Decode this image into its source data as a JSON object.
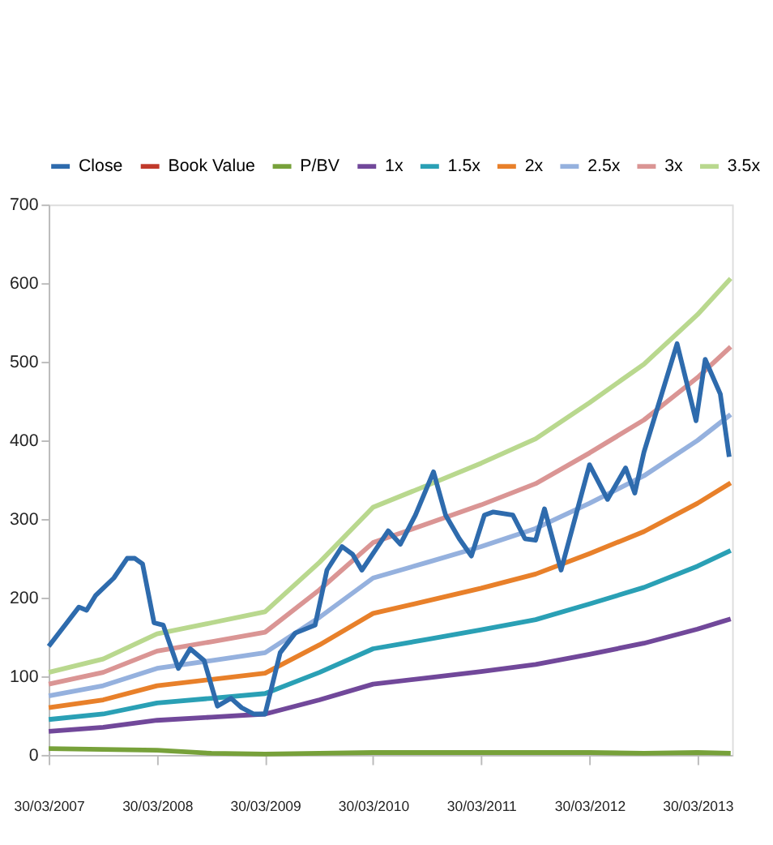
{
  "chart_data": {
    "type": "line",
    "x": [
      "2007-03-30",
      "2007-09-30",
      "2008-03-30",
      "2008-09-30",
      "2009-03-30",
      "2009-09-30",
      "2010-03-30",
      "2010-09-30",
      "2011-03-30",
      "2011-09-30",
      "2012-03-30",
      "2012-09-30",
      "2013-03-30",
      "2013-07-20"
    ],
    "series": [
      {
        "name": "Close",
        "color": "#2e6bad",
        "x": [
          "2007-03-30",
          "2007-07-10",
          "2007-08-05",
          "2007-09-05",
          "2007-11-05",
          "2007-12-20",
          "2008-01-15",
          "2008-02-10",
          "2008-03-20",
          "2008-04-20",
          "2008-06-10",
          "2008-07-20",
          "2008-09-05",
          "2008-10-20",
          "2008-12-05",
          "2009-01-10",
          "2009-02-20",
          "2009-03-30",
          "2009-05-20",
          "2009-07-10",
          "2009-09-15",
          "2009-10-25",
          "2009-12-15",
          "2010-01-20",
          "2010-02-20",
          "2010-05-20",
          "2010-06-30",
          "2010-08-20",
          "2010-10-20",
          "2010-11-30",
          "2011-01-15",
          "2011-02-25",
          "2011-04-10",
          "2011-05-10",
          "2011-07-15",
          "2011-08-25",
          "2011-09-30",
          "2011-10-30",
          "2011-12-25",
          "2012-03-30",
          "2012-05-30",
          "2012-07-30",
          "2012-08-30",
          "2012-09-30",
          "2013-01-20",
          "2013-03-25",
          "2013-04-25",
          "2013-06-15",
          "2013-07-15"
        ],
        "values": [
          138,
          188,
          184,
          203,
          225,
          250,
          250,
          243,
          168,
          165,
          110,
          135,
          120,
          62,
          72,
          60,
          52,
          52,
          130,
          155,
          165,
          235,
          265,
          255,
          235,
          285,
          268,
          305,
          360,
          305,
          275,
          253,
          305,
          309,
          305,
          275,
          273,
          313,
          235,
          369,
          325,
          365,
          333,
          385,
          523,
          425,
          503,
          459,
          379
        ]
      },
      {
        "name": "Book Value",
        "color": "#c0392b",
        "values": [
          null,
          null,
          null,
          null,
          null,
          null,
          null,
          null,
          null,
          null,
          null,
          null,
          null,
          null
        ]
      },
      {
        "name": "P/BV",
        "color": "#77a13a",
        "values": [
          8,
          7,
          6,
          2,
          1,
          2,
          3,
          3,
          3,
          3,
          3,
          2,
          3,
          2
        ]
      },
      {
        "name": "1x",
        "color": "#71489a",
        "values": [
          30,
          35,
          44,
          48,
          52,
          70,
          90,
          98,
          106,
          115,
          128,
          142,
          160,
          173
        ]
      },
      {
        "name": "1.5x",
        "color": "#2aa0b5",
        "values": [
          45,
          52,
          66,
          72,
          78,
          105,
          135,
          147,
          159,
          172,
          192,
          213,
          240,
          260
        ]
      },
      {
        "name": "2x",
        "color": "#e8802a",
        "values": [
          60,
          70,
          88,
          96,
          104,
          140,
          180,
          196,
          212,
          230,
          256,
          284,
          320,
          346
        ]
      },
      {
        "name": "2.5x",
        "color": "#95b1de",
        "values": [
          75,
          88,
          110,
          120,
          130,
          175,
          225,
          245,
          265,
          288,
          320,
          355,
          400,
          433
        ]
      },
      {
        "name": "3x",
        "color": "#da9594",
        "values": [
          90,
          105,
          132,
          144,
          156,
          210,
          270,
          294,
          318,
          345,
          384,
          426,
          480,
          519
        ]
      },
      {
        "name": "3.5x",
        "color": "#b9d88e",
        "values": [
          105,
          122,
          154,
          168,
          182,
          245,
          315,
          343,
          371,
          402,
          448,
          497,
          560,
          606
        ]
      }
    ],
    "ylim": [
      0,
      700
    ],
    "yticks": [
      0,
      100,
      200,
      300,
      400,
      500,
      600,
      700
    ],
    "xlim": [
      "2007-03-30",
      "2013-07-25"
    ],
    "xticks": [
      {
        "value": "2007-03-30",
        "label": "30/03/2007"
      },
      {
        "value": "2008-03-30",
        "label": "30/03/2008"
      },
      {
        "value": "2009-03-30",
        "label": "30/03/2009"
      },
      {
        "value": "2010-03-30",
        "label": "30/03/2010"
      },
      {
        "value": "2011-03-30",
        "label": "30/03/2011"
      },
      {
        "value": "2012-03-30",
        "label": "30/03/2012"
      },
      {
        "value": "2013-03-30",
        "label": "30/03/2013"
      }
    ],
    "grid": false,
    "legend": "top",
    "marker": "none",
    "line_style": "solid"
  }
}
